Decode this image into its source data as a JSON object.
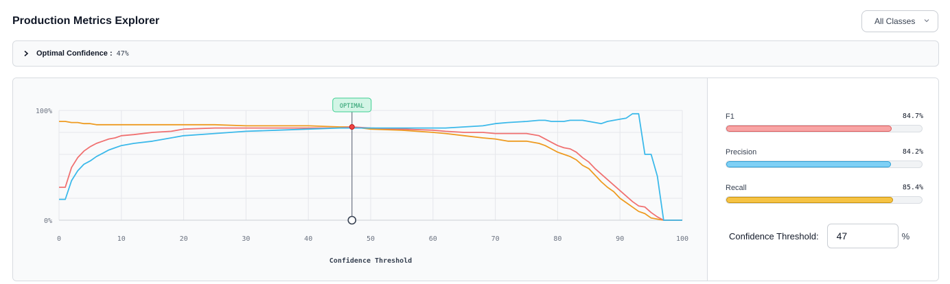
{
  "header": {
    "title": "Production Metrics Explorer"
  },
  "class_select": {
    "value": "All Classes"
  },
  "summary": {
    "label": "Optimal Confidence :",
    "value": "47%"
  },
  "metrics": [
    {
      "name": "F1",
      "value": "84.7%",
      "fraction": 0.847,
      "color": "#f8a5a5",
      "border": "#e05a5a"
    },
    {
      "name": "Precision",
      "value": "84.2%",
      "fraction": 0.842,
      "color": "#7fd0f5",
      "border": "#2a9fd6"
    },
    {
      "name": "Recall",
      "value": "85.4%",
      "fraction": 0.854,
      "color": "#f6c343",
      "border": "#c9920e"
    }
  ],
  "threshold": {
    "label": "Confidence Threshold:",
    "value": "47",
    "unit": "%"
  },
  "chart_data": {
    "type": "line",
    "xlabel": "Confidence Threshold",
    "ylabel": "",
    "xlim": [
      0,
      100
    ],
    "ylim": [
      0,
      100
    ],
    "x_ticks": [
      "0",
      "10",
      "20",
      "30",
      "40",
      "50",
      "60",
      "70",
      "80",
      "90",
      "100"
    ],
    "y_ticks": [
      "0%",
      "100%"
    ],
    "grid": true,
    "marker": {
      "label": "OPTIMAL",
      "x": 47,
      "y": 85
    },
    "x": [
      0,
      1,
      2,
      3,
      4,
      5,
      6,
      7,
      8,
      9,
      10,
      12,
      15,
      18,
      20,
      25,
      30,
      35,
      40,
      45,
      47,
      50,
      55,
      60,
      62,
      65,
      68,
      70,
      72,
      75,
      77,
      78,
      79,
      80,
      81,
      82,
      83,
      84,
      85,
      86,
      87,
      88,
      89,
      90,
      91,
      92,
      93,
      94,
      95,
      96,
      97,
      98,
      99,
      100
    ],
    "series": [
      {
        "name": "F1",
        "color": "#f07070",
        "values": [
          30,
          30,
          48,
          57,
          63,
          67,
          70,
          72,
          74,
          75,
          77,
          78,
          80,
          81,
          83,
          84,
          84,
          84,
          84,
          84,
          85,
          84,
          83,
          82,
          81,
          80,
          80,
          79,
          79,
          79,
          77,
          74,
          71,
          68,
          66,
          65,
          62,
          57,
          53,
          47,
          42,
          37,
          32,
          27,
          22,
          17,
          13,
          12,
          7,
          3,
          0,
          0,
          0,
          0
        ]
      },
      {
        "name": "Precision",
        "color": "#3bb9ea",
        "values": [
          19,
          19,
          36,
          45,
          51,
          54,
          58,
          61,
          64,
          66,
          68,
          70,
          72,
          75,
          77,
          79,
          81,
          82,
          83,
          84,
          84,
          84,
          84,
          84,
          84,
          85,
          86,
          88,
          89,
          90,
          91,
          91,
          90,
          90,
          90,
          91,
          91,
          91,
          90,
          89,
          88,
          90,
          91,
          92,
          93,
          97,
          97,
          60,
          60,
          40,
          0,
          0,
          0,
          0
        ]
      },
      {
        "name": "Recall",
        "color": "#ee9a1f",
        "values": [
          90,
          90,
          89,
          89,
          88,
          88,
          87,
          87,
          87,
          87,
          87,
          87,
          87,
          87,
          87,
          87,
          86,
          86,
          86,
          85,
          85,
          83,
          82,
          80,
          79,
          77,
          75,
          74,
          72,
          72,
          70,
          68,
          65,
          62,
          60,
          58,
          55,
          50,
          47,
          41,
          35,
          30,
          26,
          20,
          16,
          12,
          8,
          6,
          2,
          1,
          0,
          0,
          0,
          0
        ]
      }
    ]
  }
}
